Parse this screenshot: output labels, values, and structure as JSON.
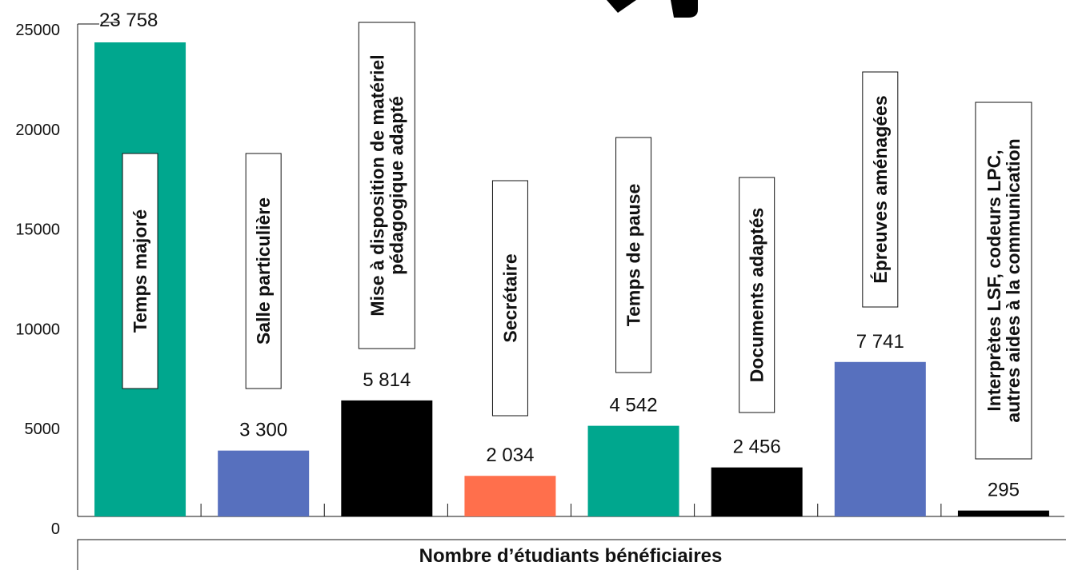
{
  "chart_data": {
    "type": "bar",
    "categories": [
      "Temps majoré",
      "Salle particulière",
      "Mise à disposition de matériel pédagogique adapté",
      "Secrétaire",
      "Temps de pause",
      "Documents adaptés",
      "Épreuves aménagées",
      "Interprètes LSF, codeurs LPC, autres aides à la communication"
    ],
    "category_lines": [
      [
        "Temps majoré"
      ],
      [
        "Salle particulière"
      ],
      [
        "Mise à disposition de matériel",
        "pédagogique adapté"
      ],
      [
        "Secrétaire"
      ],
      [
        "Temps de pause"
      ],
      [
        "Documents adaptés"
      ],
      [
        "Épreuves aménagées"
      ],
      [
        "Interprètes LSF, codeurs LPC,",
        "autres aides à la communication"
      ]
    ],
    "values": [
      23758,
      3300,
      5814,
      2034,
      4542,
      2456,
      7741,
      295
    ],
    "value_labels": [
      "23 758",
      "3 300",
      "5 814",
      "2 034",
      "4 542",
      "2 456",
      "7 741",
      "295"
    ],
    "colors": [
      "#00a78e",
      "#5770be",
      "#000000",
      "#ff6f4c",
      "#00a78e",
      "#000000",
      "#5770be",
      "#000000"
    ],
    "yticks": [
      0,
      5000,
      10000,
      15000,
      20000,
      25000
    ],
    "ylim": [
      0,
      25000
    ],
    "xlabel": "Nombre d’étudiants bénéficiaires",
    "ylabel": "",
    "title": "",
    "grid": false,
    "legend": "none"
  }
}
